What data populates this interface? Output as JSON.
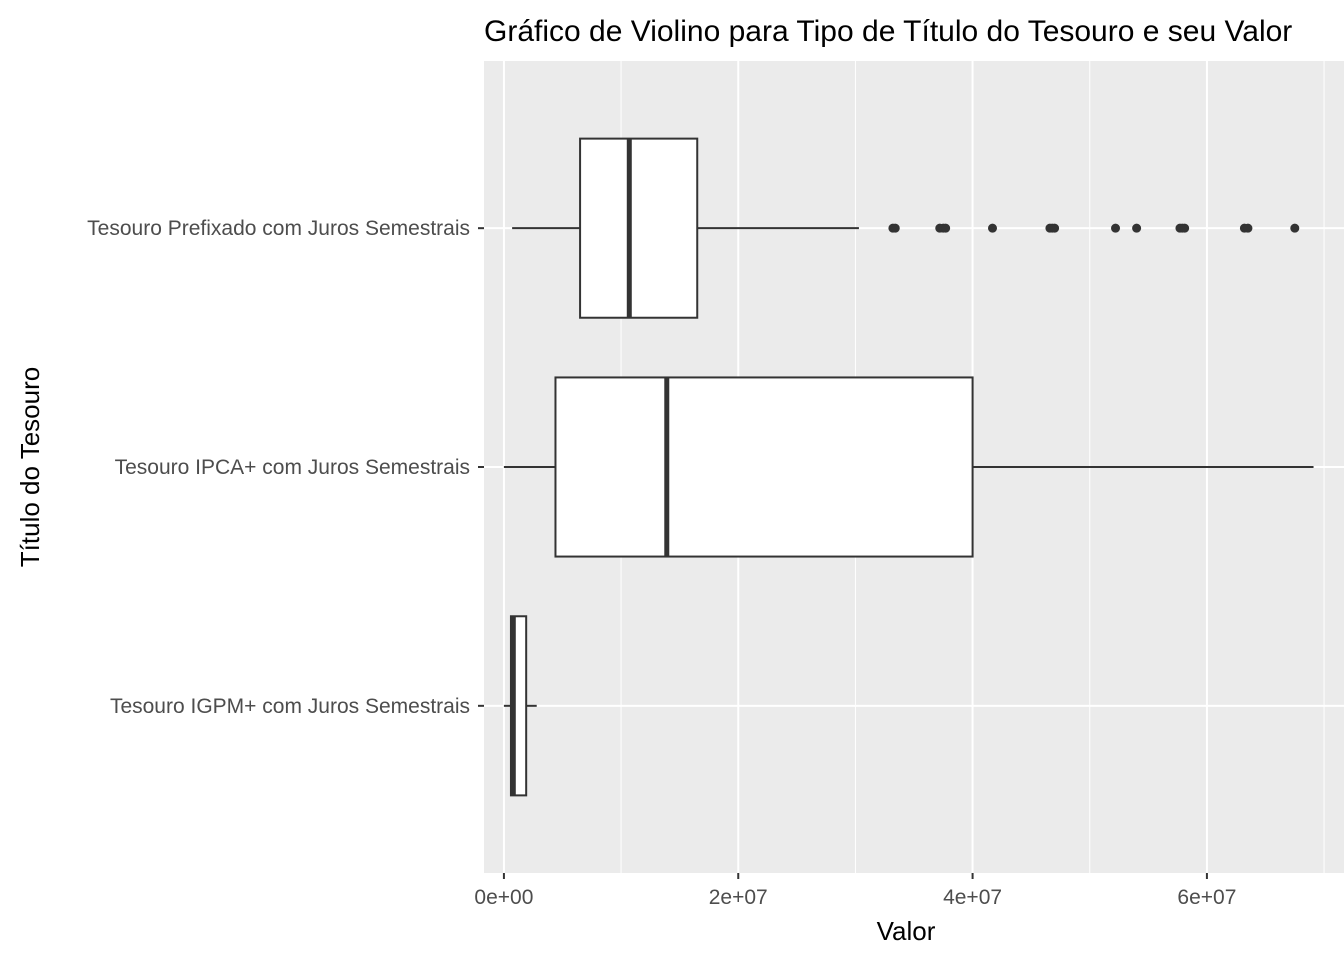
{
  "chart_data": {
    "type": "boxplot",
    "orientation": "horizontal",
    "title": "Gráfico de Violino para Tipo de Título do Tesouro e seu Valor",
    "xlabel": "Valor",
    "ylabel": "Título do Tesouro",
    "xlim": [
      -1700000,
      71700000
    ],
    "x_ticks": [
      {
        "value": 0,
        "label": "0e+00"
      },
      {
        "value": 20000000,
        "label": "2e+07"
      },
      {
        "value": 40000000,
        "label": "4e+07"
      },
      {
        "value": 60000000,
        "label": "6e+07"
      }
    ],
    "x_minor_ticks": [
      10000000,
      30000000,
      50000000,
      70000000
    ],
    "grid": true,
    "categories": [
      "Tesouro Prefixado com Juros Semestrais",
      "Tesouro IPCA+ com Juros Semestrais",
      "Tesouro IGPM+ com Juros Semestrais"
    ],
    "boxes": [
      {
        "category": "Tesouro Prefixado com Juros Semestrais",
        "whisker_low": 700000,
        "q1": 6500000,
        "median": 10700000,
        "q3": 16500000,
        "whisker_high": 30300000,
        "outliers": [
          33200000,
          33400000,
          37200000,
          37500000,
          37700000,
          41700000,
          46600000,
          46800000,
          47000000,
          52200000,
          54000000,
          57700000,
          57900000,
          58100000,
          63200000,
          63500000,
          67500000
        ]
      },
      {
        "category": "Tesouro IPCA+ com Juros Semestrais",
        "whisker_low": 0,
        "q1": 4400000,
        "median": 13900000,
        "q3": 40000000,
        "whisker_high": 69100000,
        "outliers": []
      },
      {
        "category": "Tesouro IGPM+ com Juros Semestrais",
        "whisker_low": 0,
        "q1": 600000,
        "median": 800000,
        "q3": 1900000,
        "whisker_high": 2800000,
        "outliers": []
      }
    ],
    "colors": {
      "panel_background": "#EBEBEB",
      "grid_major": "#FFFFFF",
      "box_fill": "#FFFFFF",
      "box_stroke": "#333333",
      "tick_label": "#4D4D4D"
    }
  }
}
